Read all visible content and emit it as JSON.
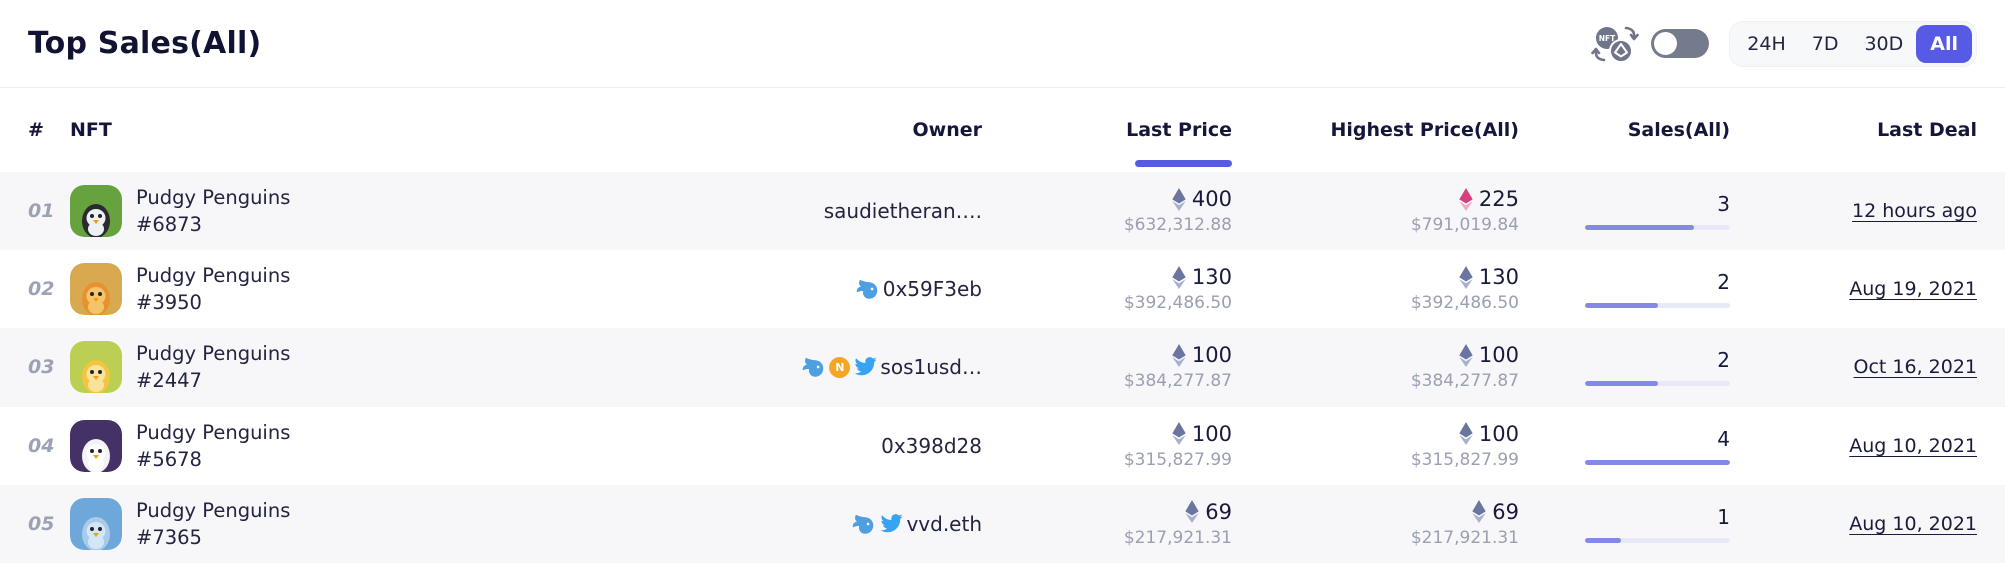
{
  "header": {
    "title": "Top Sales(All)",
    "periods": [
      "24H",
      "7D",
      "30D",
      "All"
    ],
    "selected_period": "All",
    "currency_toggle_state": "off"
  },
  "colors": {
    "accent": "#575ae4",
    "zebra_row": "#f7f7fa",
    "eth_gray": "#6b76a0",
    "eth_pink": "#d4417f",
    "bar_fill": "#828ae6",
    "whale_blue": "#4d9fe0",
    "twitter_blue": "#36a3f3",
    "badge_orange": "#f5a623"
  },
  "table": {
    "columns": [
      "#",
      "NFT",
      "Owner",
      "Last Price",
      "Highest Price(All)",
      "Sales(All)",
      "Last Deal"
    ],
    "sorted_column": "Last Price",
    "rows": [
      {
        "rank": "01",
        "nft": {
          "collection": "Pudgy Penguins",
          "token": "#6873"
        },
        "avatar": {
          "bg": "#66a23e",
          "body": "#2a2a30",
          "belly": "#edf1f4"
        },
        "owner": {
          "name": "saudietheran….",
          "icons": []
        },
        "last_price": {
          "eth": "400",
          "usd": "$632,312.88",
          "diamond": "gray"
        },
        "highest_price": {
          "eth": "225",
          "usd": "$791,019.84",
          "diamond": "pink"
        },
        "sales": {
          "count": "3",
          "pct": 75
        },
        "last_deal": "12 hours ago"
      },
      {
        "rank": "02",
        "nft": {
          "collection": "Pudgy Penguins",
          "token": "#3950"
        },
        "avatar": {
          "bg": "#d8a94f",
          "body": "#e8922f",
          "belly": "#f3c469"
        },
        "owner": {
          "name": "0x59F3eb",
          "icons": [
            "whale"
          ]
        },
        "last_price": {
          "eth": "130",
          "usd": "$392,486.50",
          "diamond": "gray"
        },
        "highest_price": {
          "eth": "130",
          "usd": "$392,486.50",
          "diamond": "gray"
        },
        "sales": {
          "count": "2",
          "pct": 50
        },
        "last_deal": "Aug 19, 2021"
      },
      {
        "rank": "03",
        "nft": {
          "collection": "Pudgy Penguins",
          "token": "#2447"
        },
        "avatar": {
          "bg": "#bccf52",
          "body": "#f1c63e",
          "belly": "#f8e29c"
        },
        "owner": {
          "name": "sos1usd…",
          "icons": [
            "whale",
            "badge",
            "twitter"
          ]
        },
        "last_price": {
          "eth": "100",
          "usd": "$384,277.87",
          "diamond": "gray"
        },
        "highest_price": {
          "eth": "100",
          "usd": "$384,277.87",
          "diamond": "gray"
        },
        "sales": {
          "count": "2",
          "pct": 50
        },
        "last_deal": "Oct 16, 2021"
      },
      {
        "rank": "04",
        "nft": {
          "collection": "Pudgy Penguins",
          "token": "#5678"
        },
        "avatar": {
          "bg": "#443166",
          "body": "#f2f2f8",
          "belly": "#ffffff"
        },
        "owner": {
          "name": "0x398d28",
          "icons": []
        },
        "last_price": {
          "eth": "100",
          "usd": "$315,827.99",
          "diamond": "gray"
        },
        "highest_price": {
          "eth": "100",
          "usd": "$315,827.99",
          "diamond": "gray"
        },
        "sales": {
          "count": "4",
          "pct": 100
        },
        "last_deal": "Aug 10, 2021"
      },
      {
        "rank": "05",
        "nft": {
          "collection": "Pudgy Penguins",
          "token": "#7365"
        },
        "avatar": {
          "bg": "#6ea7da",
          "body": "#a9cbe9",
          "belly": "#d3e6f6"
        },
        "owner": {
          "name": "vvd.eth",
          "icons": [
            "whale",
            "twitter"
          ]
        },
        "last_price": {
          "eth": "69",
          "usd": "$217,921.31",
          "diamond": "gray"
        },
        "highest_price": {
          "eth": "69",
          "usd": "$217,921.31",
          "diamond": "gray"
        },
        "sales": {
          "count": "1",
          "pct": 25
        },
        "last_deal": "Aug 10, 2021"
      }
    ]
  }
}
